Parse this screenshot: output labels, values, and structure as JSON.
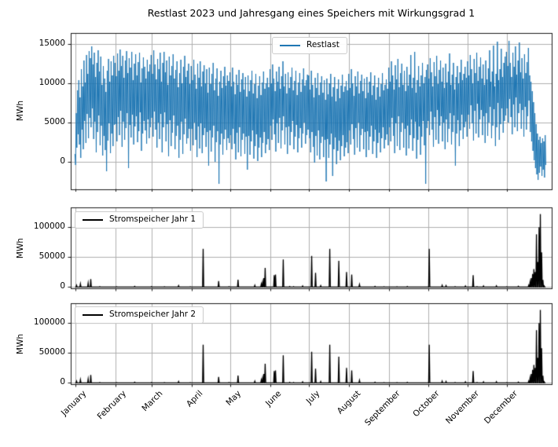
{
  "figure": {
    "title": "Restlast 2023 und Jahresgang eines Speichers mit Wirkungsgrad 1",
    "background": "#ffffff",
    "grid_color": "#b0b0b0",
    "spine_color": "#1a1a1a",
    "grid": true
  },
  "x_axis": {
    "unit": "day_of_year",
    "xlim": [
      -2.5,
      369.8
    ],
    "tick_days": [
      1,
      32,
      60,
      91,
      121,
      152,
      182,
      213,
      244,
      274,
      305,
      335
    ],
    "tick_labels": [
      "January",
      "February",
      "March",
      "April",
      "May",
      "June",
      "July",
      "August",
      "September",
      "October",
      "November",
      "December"
    ],
    "tick_rotation_deg": 45
  },
  "chart_data": [
    {
      "type": "line",
      "legend": "Restlast",
      "legend_position": "upper center",
      "ylabel": "MWh",
      "color": "#1f77b4",
      "yticks": [
        0,
        5000,
        10000,
        15000
      ],
      "ylim": [
        -3450,
        16400
      ],
      "daily_high": [
        1000,
        6200,
        9100,
        10400,
        8200,
        11800,
        9600,
        12900,
        10100,
        13600,
        11200,
        14100,
        13200,
        14700,
        12400,
        13900,
        10800,
        12600,
        14200,
        11500,
        13400,
        9800,
        12200,
        10600,
        8900,
        11600,
        13100,
        10200,
        12800,
        11000,
        13500,
        12600,
        10900,
        13800,
        11600,
        14300,
        12200,
        13500,
        10700,
        12900,
        14100,
        11300,
        13200,
        12000,
        14000,
        10400,
        12500,
        13700,
        11000,
        12700,
        13900,
        10100,
        11900,
        13300,
        12100,
        10600,
        13000,
        11500,
        12400,
        13600,
        11200,
        14200,
        12400,
        10500,
        13100,
        11800,
        13900,
        10200,
        12600,
        14000,
        11400,
        12900,
        9800,
        13400,
        11000,
        12200,
        13700,
        10600,
        11700,
        12800,
        9500,
        11300,
        13000,
        10000,
        12100,
        13500,
        10800,
        11600,
        12500,
        9900,
        12200,
        10400,
        13000,
        11100,
        9300,
        12500,
        10700,
        12800,
        9600,
        11500,
        12300,
        10000,
        11800,
        8800,
        12000,
        9900,
        11200,
        12600,
        9100,
        10600,
        11900,
        8400,
        10200,
        11600,
        9400,
        10900,
        12100,
        9700,
        11000,
        10300,
        11400,
        9600,
        12000,
        10200,
        8600,
        11100,
        9800,
        11700,
        8900,
        10500,
        11300,
        9200,
        10800,
        8300,
        11000,
        9000,
        10400,
        11600,
        8700,
        9900,
        11200,
        8100,
        9700,
        10900,
        8500,
        10100,
        11500,
        9300,
        10000,
        10700,
        9500,
        11800,
        10000,
        12400,
        10600,
        9000,
        11500,
        10200,
        12100,
        9300,
        10900,
        12800,
        9600,
        11200,
        8700,
        11400,
        9400,
        10800,
        12000,
        9100,
        10300,
        11600,
        8500,
        10100,
        11300,
        8900,
        10500,
        11900,
        9700,
        10400,
        11100,
        11000,
        9200,
        11600,
        9800,
        8200,
        10700,
        9400,
        11300,
        8500,
        10100,
        10900,
        8800,
        10400,
        7900,
        10600,
        8600,
        10000,
        11200,
        8300,
        9500,
        10800,
        7700,
        9300,
        10500,
        8100,
        9700,
        11100,
        8900,
        9600,
        10300,
        9100,
        11200,
        9400,
        11800,
        10000,
        8400,
        10900,
        9600,
        11500,
        8700,
        10300,
        11100,
        9000,
        10600,
        8100,
        10800,
        8800,
        10200,
        11400,
        8500,
        9700,
        11000,
        7900,
        9500,
        10700,
        8300,
        9900,
        11300,
        9100,
        9800,
        10500,
        9300,
        12000,
        10200,
        12800,
        11000,
        9200,
        12300,
        10500,
        13100,
        9500,
        11300,
        12500,
        9800,
        11600,
        9000,
        12100,
        9700,
        11100,
        13600,
        9400,
        10700,
        14000,
        8800,
        10400,
        12200,
        9600,
        11000,
        12600,
        10000,
        10800,
        11700,
        12400,
        10600,
        13200,
        11400,
        9600,
        12700,
        10900,
        13500,
        9900,
        11700,
        12900,
        10200,
        12000,
        9400,
        12500,
        10100,
        11500,
        13800,
        9800,
        11100,
        12600,
        9200,
        10800,
        12200,
        10000,
        11400,
        13000,
        10400,
        11200,
        12100,
        10700,
        12800,
        11000,
        13600,
        11800,
        10000,
        13100,
        11300,
        13900,
        10300,
        12100,
        13300,
        10600,
        12400,
        9800,
        12900,
        10500,
        11900,
        14200,
        10200,
        11500,
        14800,
        9600,
        11200,
        15300,
        10400,
        11800,
        14400,
        10800,
        12600,
        13400,
        14000,
        12200,
        15400,
        12600,
        10800,
        13900,
        12100,
        14700,
        11100,
        12900,
        15200,
        11400,
        13200,
        10600,
        13700,
        11300,
        12700,
        14500,
        11000,
        10200,
        9000,
        7600,
        6200,
        4800,
        3600,
        2800,
        3200,
        2400,
        3000,
        2600,
        3400
      ],
      "daily_low": [
        -400,
        1800,
        3500,
        2200,
        500,
        4100,
        1600,
        5200,
        2400,
        6100,
        3000,
        5600,
        4400,
        6800,
        2900,
        5100,
        1200,
        3800,
        5900,
        2100,
        4600,
        800,
        3300,
        1500,
        -1200,
        2700,
        4900,
        1100,
        3600,
        2000,
        4700,
        4800,
        2600,
        5700,
        3400,
        6500,
        1900,
        5100,
        2800,
        4300,
        6200,
        -800,
        4700,
        3100,
        6000,
        2200,
        4500,
        5800,
        2500,
        3900,
        6300,
        1400,
        3600,
        5200,
        4000,
        2300,
        5400,
        3000,
        4400,
        5600,
        3200,
        6400,
        4100,
        1800,
        5000,
        2900,
        6100,
        1200,
        4400,
        6300,
        2600,
        4800,
        700,
        5300,
        2000,
        3700,
        5900,
        1600,
        3300,
        4600,
        500,
        2800,
        5100,
        1000,
        3500,
        5500,
        2300,
        3000,
        4200,
        1400,
        4200,
        2100,
        5000,
        2800,
        600,
        4500,
        1700,
        4900,
        1100,
        3400,
        4300,
        1900,
        3800,
        -500,
        4000,
        1300,
        3100,
        4600,
        0,
        2500,
        3900,
        -2800,
        2200,
        3600,
        900,
        2900,
        4100,
        1500,
        3000,
        2400,
        3400,
        1600,
        4200,
        2300,
        300,
        3700,
        1200,
        4400,
        700,
        2800,
        3600,
        1000,
        3200,
        -1000,
        3300,
        900,
        2600,
        4000,
        400,
        2000,
        3500,
        100,
        1800,
        3100,
        600,
        2400,
        3800,
        1100,
        2200,
        2900,
        1500,
        4600,
        2800,
        5400,
        3500,
        1300,
        4900,
        2400,
        5600,
        1700,
        4000,
        5800,
        2200,
        4400,
        1000,
        4500,
        2100,
        3800,
        5200,
        1600,
        3200,
        4700,
        1200,
        3000,
        4300,
        1800,
        3600,
        5000,
        2300,
        3400,
        4100,
        3000,
        1200,
        3800,
        1900,
        -100,
        3300,
        800,
        4000,
        300,
        2400,
        3200,
        600,
        2800,
        -2500,
        2900,
        500,
        2200,
        3600,
        -1800,
        1600,
        3100,
        -300,
        1400,
        2700,
        200,
        2000,
        3400,
        700,
        1800,
        2500,
        1100,
        4000,
        2200,
        4800,
        2900,
        900,
        4300,
        1800,
        5000,
        1300,
        3400,
        4200,
        1600,
        3800,
        600,
        3900,
        1500,
        3200,
        4600,
        1000,
        2600,
        4100,
        500,
        2400,
        3700,
        1200,
        3000,
        4400,
        1700,
        2800,
        3500,
        2100,
        4400,
        2600,
        5600,
        3300,
        1100,
        4900,
        2000,
        5800,
        1500,
        3800,
        5000,
        1800,
        4200,
        800,
        4600,
        1700,
        3400,
        5400,
        1400,
        3000,
        5100,
        400,
        2800,
        4500,
        900,
        3200,
        5200,
        2100,
        -2800,
        4300,
        5200,
        3400,
        6400,
        4100,
        1900,
        5700,
        2800,
        6600,
        2300,
        4600,
        5800,
        2600,
        5000,
        1600,
        5400,
        2500,
        4200,
        6200,
        2200,
        3800,
        5900,
        -500,
        3600,
        5300,
        2000,
        4000,
        6000,
        2900,
        4400,
        5100,
        3200,
        6000,
        4200,
        7200,
        4900,
        2700,
        6500,
        3600,
        7400,
        3100,
        5400,
        6600,
        3400,
        5800,
        2400,
        6200,
        3300,
        5000,
        7000,
        3000,
        4600,
        6700,
        2000,
        4400,
        7500,
        2800,
        4800,
        6800,
        3700,
        5200,
        5900,
        6800,
        5000,
        8000,
        5700,
        3500,
        7300,
        4400,
        8200,
        3900,
        6200,
        7400,
        4200,
        6600,
        3200,
        7000,
        4100,
        5800,
        7800,
        3800,
        2600,
        1400,
        200,
        -800,
        -1600,
        -2300,
        -1400,
        -600,
        -1800,
        -1000,
        -2000,
        -400
      ]
    },
    {
      "type": "line",
      "legend": "Stromspeicher Jahr 1",
      "legend_position": "upper left",
      "ylabel": "MWh",
      "color": "#000000",
      "yticks": [
        0,
        50000,
        100000
      ],
      "ylim": [
        -2000,
        133000
      ],
      "baseline": 0,
      "spikes": [
        [
          2,
          3000
        ],
        [
          5,
          5500
        ],
        [
          11,
          7000
        ],
        [
          13,
          13500
        ],
        [
          20,
          800
        ],
        [
          33,
          600
        ],
        [
          47,
          1200
        ],
        [
          60,
          900
        ],
        [
          70,
          500
        ],
        [
          81,
          2500
        ],
        [
          90,
          700
        ],
        [
          100,
          64000
        ],
        [
          112,
          10000
        ],
        [
          120,
          800
        ],
        [
          127,
          12500
        ],
        [
          140,
          3000
        ],
        [
          145,
          5000
        ],
        [
          146,
          8000
        ],
        [
          147,
          15000
        ],
        [
          148,
          32000
        ],
        [
          155,
          20000
        ],
        [
          156,
          21000
        ],
        [
          162,
          46000
        ],
        [
          167,
          1000
        ],
        [
          170,
          800
        ],
        [
          177,
          2000
        ],
        [
          184,
          52000
        ],
        [
          187,
          24000
        ],
        [
          191,
          2500
        ],
        [
          198,
          64000
        ],
        [
          205,
          44000
        ],
        [
          211,
          25000
        ],
        [
          215,
          21000
        ],
        [
          221,
          4500
        ],
        [
          233,
          1200
        ],
        [
          240,
          600
        ],
        [
          250,
          500
        ],
        [
          258,
          1000
        ],
        [
          275,
          64000
        ],
        [
          285,
          3000
        ],
        [
          288,
          2500
        ],
        [
          295,
          800
        ],
        [
          303,
          2000
        ],
        [
          309,
          20000
        ],
        [
          312,
          900
        ],
        [
          317,
          2000
        ],
        [
          327,
          2200
        ],
        [
          335,
          700
        ],
        [
          344,
          1500
        ],
        [
          352,
          3000
        ],
        [
          353,
          8000
        ],
        [
          354,
          15000
        ],
        [
          355,
          22000
        ],
        [
          356,
          30000
        ],
        [
          357,
          25000
        ],
        [
          358,
          88000
        ],
        [
          359,
          42000
        ],
        [
          360,
          100000
        ],
        [
          361,
          122000
        ],
        [
          362,
          58000
        ],
        [
          363,
          12000
        ],
        [
          364,
          2000
        ]
      ]
    },
    {
      "type": "line",
      "legend": "Stromspeicher Jahr 2",
      "legend_position": "upper left",
      "ylabel": "MWh",
      "color": "#000000",
      "yticks": [
        0,
        50000,
        100000
      ],
      "ylim": [
        -2000,
        133000
      ],
      "baseline": 0,
      "spikes": [
        [
          2,
          3000
        ],
        [
          5,
          5500
        ],
        [
          11,
          7000
        ],
        [
          13,
          13500
        ],
        [
          20,
          800
        ],
        [
          33,
          600
        ],
        [
          47,
          1200
        ],
        [
          60,
          900
        ],
        [
          70,
          500
        ],
        [
          81,
          2500
        ],
        [
          90,
          700
        ],
        [
          100,
          64000
        ],
        [
          112,
          10000
        ],
        [
          120,
          800
        ],
        [
          127,
          12500
        ],
        [
          140,
          3000
        ],
        [
          145,
          5000
        ],
        [
          146,
          8000
        ],
        [
          147,
          15000
        ],
        [
          148,
          32000
        ],
        [
          155,
          20000
        ],
        [
          156,
          21000
        ],
        [
          162,
          46000
        ],
        [
          167,
          1000
        ],
        [
          170,
          800
        ],
        [
          177,
          2000
        ],
        [
          184,
          52000
        ],
        [
          187,
          24000
        ],
        [
          191,
          2500
        ],
        [
          198,
          64000
        ],
        [
          205,
          44000
        ],
        [
          211,
          25000
        ],
        [
          215,
          21000
        ],
        [
          221,
          4500
        ],
        [
          233,
          1200
        ],
        [
          240,
          600
        ],
        [
          250,
          500
        ],
        [
          258,
          1000
        ],
        [
          275,
          64000
        ],
        [
          285,
          3000
        ],
        [
          288,
          2500
        ],
        [
          295,
          800
        ],
        [
          303,
          2000
        ],
        [
          309,
          20000
        ],
        [
          312,
          900
        ],
        [
          317,
          2000
        ],
        [
          327,
          2200
        ],
        [
          335,
          700
        ],
        [
          344,
          1500
        ],
        [
          352,
          3000
        ],
        [
          353,
          8000
        ],
        [
          354,
          15000
        ],
        [
          355,
          22000
        ],
        [
          356,
          30000
        ],
        [
          357,
          25000
        ],
        [
          358,
          88000
        ],
        [
          359,
          42000
        ],
        [
          360,
          100000
        ],
        [
          361,
          122000
        ],
        [
          362,
          58000
        ],
        [
          363,
          12000
        ],
        [
          364,
          2000
        ]
      ]
    }
  ]
}
